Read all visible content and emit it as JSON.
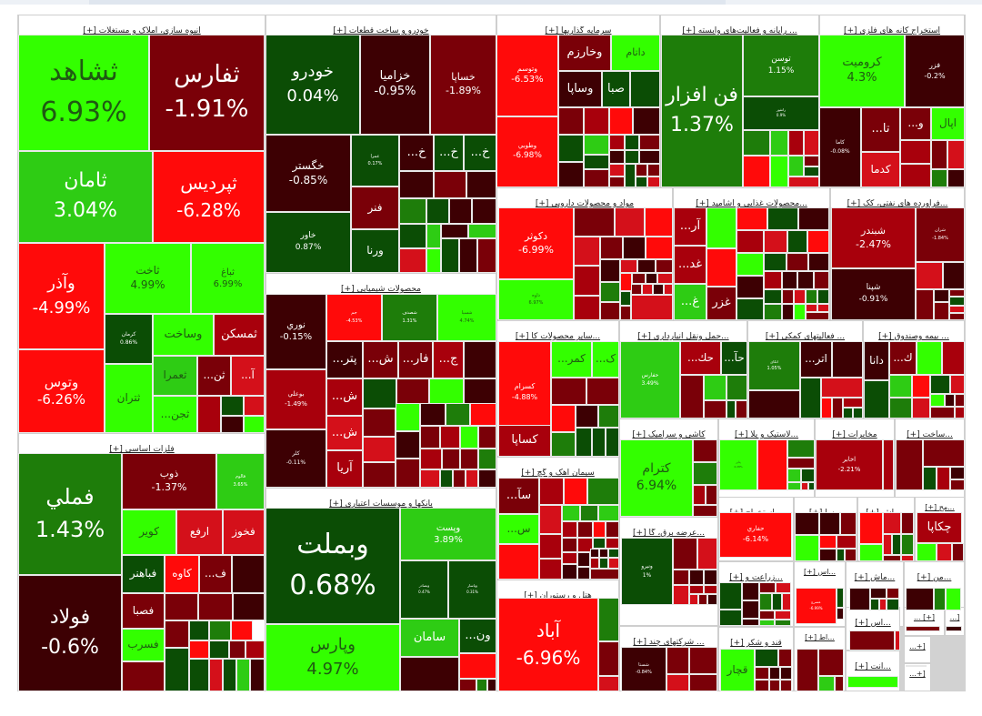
{
  "colors": {
    "strong_green": "#33ff00",
    "mid_green": "#2ecc14",
    "green": "#1e7d0a",
    "dark_green": "#0b4d05",
    "strong_red": "#ff0a0a",
    "red": "#d4101a",
    "mid_red": "#a8000c",
    "dark_red": "#7a0008",
    "darkest_red": "#3d0003"
  },
  "chart_data": {
    "type": "heatmap",
    "title": "",
    "subtype": "treemap",
    "value_label": "daily change %",
    "sectors": [
      {
        "name": "انبوه سازی، املاک و مستغلات",
        "stocks": [
          {
            "symbol": "ثشاهد",
            "change": 6.93
          },
          {
            "symbol": "ثفارس",
            "change": -1.91
          },
          {
            "symbol": "ثامان",
            "change": 3.04
          },
          {
            "symbol": "ثپردیس",
            "change": -6.28
          },
          {
            "symbol": "وآذر",
            "change": -4.99
          },
          {
            "symbol": "ثاخت",
            "change": 4.99
          },
          {
            "symbol": "ثباغ",
            "change": 6.99
          },
          {
            "symbol": "وتوس",
            "change": -6.26
          },
          {
            "symbol": "کرمان",
            "change": 0.86
          },
          {
            "symbol": "وساخت",
            "change": null
          },
          {
            "symbol": "ثمسکن",
            "change": null
          },
          {
            "symbol": "ثعمرا",
            "change": null
          },
          {
            "symbol": "ثتران",
            "change": null
          },
          {
            "symbol": "ثجن...",
            "change": null
          }
        ]
      },
      {
        "name": "فلزات اساسی",
        "stocks": [
          {
            "symbol": "فملي",
            "change": 1.43
          },
          {
            "symbol": "فولاد",
            "change": -0.6
          },
          {
            "symbol": "ذوب",
            "change": -1.37
          },
          {
            "symbol": "فالوم",
            "change": 3.65
          },
          {
            "symbol": "کویر",
            "change": null
          },
          {
            "symbol": "ارفع",
            "change": null
          },
          {
            "symbol": "فخوز",
            "change": null
          },
          {
            "symbol": "فباهنر",
            "change": null
          },
          {
            "symbol": "کاوه",
            "change": null
          },
          {
            "symbol": "فصبا",
            "change": null
          },
          {
            "symbol": "فسرب",
            "change": null
          }
        ]
      },
      {
        "name": "خودرو و ساخت قطعات",
        "stocks": [
          {
            "symbol": "خودرو",
            "change": 0.04
          },
          {
            "symbol": "خزامیا",
            "change": -0.95
          },
          {
            "symbol": "خساپا",
            "change": -1.89
          },
          {
            "symbol": "خگستر",
            "change": -0.85
          },
          {
            "symbol": "خاور",
            "change": 0.87
          },
          {
            "symbol": "عمرا",
            "change": 0.17
          },
          {
            "symbol": "فنر",
            "change": null
          },
          {
            "symbol": "ورنا",
            "change": null
          }
        ]
      },
      {
        "name": "محصولات شیمیایی",
        "stocks": [
          {
            "symbol": "نوري",
            "change": -0.15
          },
          {
            "symbol": "بوعلي",
            "change": -1.49
          },
          {
            "symbol": "کلر",
            "change": -0.11
          },
          {
            "symbol": "جم",
            "change": -4.53
          },
          {
            "symbol": "شصدف",
            "change": 1.31
          },
          {
            "symbol": "شسپا",
            "change": 4.74
          },
          {
            "symbol": "آریا",
            "change": null
          }
        ]
      },
      {
        "name": "بانکها و موسسات اعتباری",
        "stocks": [
          {
            "symbol": "وبملت",
            "change": 0.68
          },
          {
            "symbol": "وپارس",
            "change": 4.97
          },
          {
            "symbol": "وپست",
            "change": 3.89
          },
          {
            "symbol": "وبصادر",
            "change": 0.47
          },
          {
            "symbol": "وپاسار",
            "change": 0.31
          },
          {
            "symbol": "سامان",
            "change": null
          }
        ]
      },
      {
        "name": "سرمایه گذاریها",
        "stocks": [
          {
            "symbol": "وتوسم",
            "change": -6.53
          },
          {
            "symbol": "وطوبي",
            "change": -6.98
          },
          {
            "symbol": "وخارزم",
            "change": null
          },
          {
            "symbol": "داتام",
            "change": null
          },
          {
            "symbol": "وساپا",
            "change": null
          },
          {
            "symbol": "صبا",
            "change": null
          }
        ]
      },
      {
        "name": "رایانه و فعالیت‌های وابسته",
        "stocks": [
          {
            "symbol": "فن افزار",
            "change": 1.37
          },
          {
            "symbol": "توسن",
            "change": 1.15
          },
          {
            "symbol": "رانفور",
            "change": 0.9
          }
        ]
      },
      {
        "name": "استخراج کانه های فلزی",
        "stocks": [
          {
            "symbol": "کرومیت",
            "change": 4.3
          },
          {
            "symbol": "فزر",
            "change": -0.2
          },
          {
            "symbol": "کاما",
            "change": -0.08
          },
          {
            "symbol": "اپال",
            "change": null
          },
          {
            "symbol": "کدما",
            "change": null
          }
        ]
      },
      {
        "name": "مواد و محصولات دارویی",
        "stocks": [
          {
            "symbol": "دکوثر",
            "change": -6.99
          },
          {
            "symbol": "داوه",
            "change": 6.97
          }
        ]
      },
      {
        "name": "محصولات غذایی و آشامیدنی",
        "stocks": [
          {
            "symbol": "غزر",
            "change": null
          }
        ]
      },
      {
        "name": "فراورده های نفتی، کک",
        "stocks": [
          {
            "symbol": "شبندر",
            "change": -2.47
          },
          {
            "symbol": "شپنا",
            "change": -0.91
          },
          {
            "symbol": "شران",
            "change": -1.84
          }
        ]
      },
      {
        "name": "سایر محصولات کانی غیرفلزی",
        "stocks": [
          {
            "symbol": "کسرام",
            "change": -4.88
          },
          {
            "symbol": "کساپا",
            "change": null
          }
        ]
      },
      {
        "name": "حمل ونقل انبارداری",
        "stocks": [
          {
            "symbol": "حفارس",
            "change": 3.49
          }
        ]
      },
      {
        "name": "فعالیتهای کمکی",
        "stocks": [
          {
            "symbol": "اتکای",
            "change": 1.05
          }
        ]
      },
      {
        "name": "بیمه و صندوق",
        "stocks": [
          {
            "symbol": "دانا",
            "change": null
          }
        ]
      },
      {
        "name": "کاشی و سرامیک",
        "stocks": [
          {
            "symbol": "کترام",
            "change": 6.94
          }
        ]
      },
      {
        "name": "لاستیک و پلاستیک",
        "stocks": [
          {
            "symbol": "پتایر",
            "change": 4.28
          }
        ]
      },
      {
        "name": "مخابرات",
        "stocks": [
          {
            "symbol": "اخابر",
            "change": -2.21
          }
        ]
      },
      {
        "name": "سیمان، آهک و گچ",
        "stocks": []
      },
      {
        "name": "عرضه برق، گاز",
        "stocks": [
          {
            "symbol": "ونیرو",
            "change": 1.0
          }
        ]
      },
      {
        "name": "هتل و رستوران",
        "stocks": [
          {
            "symbol": "آباد",
            "change": -6.96
          }
        ]
      },
      {
        "name": "شرکتهای چند رشته ای",
        "stocks": [
          {
            "symbol": "شستا",
            "change": -0.84
          }
        ]
      },
      {
        "name": "استخراج سایر معادن",
        "stocks": [
          {
            "symbol": "حفاري",
            "change": -6.14
          }
        ]
      },
      {
        "name": "محصولات چوبی",
        "stocks": [
          {
            "symbol": "چکاپا",
            "change": null
          }
        ]
      },
      {
        "name": "زراعت",
        "stocks": []
      },
      {
        "name": "قند و شکر",
        "stocks": [
          {
            "symbol": "قچار",
            "change": null
          }
        ]
      },
      {
        "name": "ماشین آلات",
        "stocks": []
      },
      {
        "name": "منسوجات",
        "stocks": []
      }
    ]
  },
  "sectors": {
    "s1": "انبوه سازی، املاک و مستغلات [+]",
    "s2": "خودرو و ساخت قطعات [+]",
    "s3": "سرمایه گذاریها [+]",
    "s4": "... رایانه و فعالیت‌های وابسته [+]",
    "s5": "استخراج کانه های فلزی [+]",
    "s6": "فلزات اساسی [+]",
    "s7": "محصولات شیمیایی [+]",
    "s8": "بانکها و موسسات اعتباری [+]",
    "s9": "مواد و محصولات دارویی [+]",
    "s10": "...محصولات غذایی و آشامید [+]",
    "s11": "...فراورده های نفتی، کک [+]",
    "s12": "...سایر محصولات کا [+]",
    "s13": "...حمل ونقل انبارداری [+]",
    "s14": "... فعالیتهای کمکی [+]",
    "s15": "... بیمه وصندوق [+]",
    "s16": "...ساخت [+]",
    "s17": "کاشی و سرامیک [+]",
    "s18": "...لاستیک و پلا [+]",
    "s19": "مخابرات [+]",
    "s20": "سیمان آهک و گچ [+]",
    "s21": "...عرضه برق، گا [+]",
    "s22": "هتل و رستوران [+]",
    "s23": "... شرکتهای چند [+]",
    "s24": "...استخراج [+]",
    "s25": "...سا [+]",
    "s26": "...ماش [+]",
    "s27": "...مح [+]",
    "s28": "...زراعت و [+]",
    "s29": "...اس [+]",
    "s30": "...ماش [+]",
    "s31": "...من [+]",
    "s32": "قند و شکر [+]",
    "s33": "...اط [+]",
    "s34": "...اس [+]",
    "s35": "...انت [+]",
    "s36": "[+] ...",
    "s37": "[...",
    "s38": "[+...",
    "s39": "[+..."
  },
  "tiles": {
    "t1": {
      "sym": "ثشاهد",
      "pct": "6.93%"
    },
    "t2": {
      "sym": "ثفارس",
      "pct": "-1.91%"
    },
    "t3": {
      "sym": "ثامان",
      "pct": "3.04%"
    },
    "t4": {
      "sym": "ثپردیس",
      "pct": "-6.28%"
    },
    "t5": {
      "sym": "وآذر",
      "pct": "-4.99%"
    },
    "t6": {
      "sym": "ثاخت",
      "pct": "4.99%"
    },
    "t7": {
      "sym": "ثباغ",
      "pct": "6.99%"
    },
    "t8": {
      "sym": "وتوس",
      "pct": "-6.26%"
    },
    "t9": {
      "sym": "کرمان",
      "pct": "0.86%"
    },
    "t10": {
      "sym": "وساخت",
      "pct": ""
    },
    "t11": {
      "sym": "ثمسکن",
      "pct": ""
    },
    "t12": {
      "sym": "ثعمرا",
      "pct": ""
    },
    "t13": {
      "sym": "ثن...",
      "pct": ""
    },
    "t14": {
      "sym": "آ...",
      "pct": ""
    },
    "t15": {
      "sym": "ثتران",
      "pct": ""
    },
    "t16": {
      "sym": "ثجن...",
      "pct": ""
    },
    "f1": {
      "sym": "فملي",
      "pct": "1.43%"
    },
    "f2": {
      "sym": "فولاد",
      "pct": "-0.6%"
    },
    "f3": {
      "sym": "ذوب",
      "pct": "-1.37%"
    },
    "f4": {
      "sym": "فالوم",
      "pct": "3.65%"
    },
    "f5": {
      "sym": "کویر",
      "pct": ""
    },
    "f6": {
      "sym": "ارفع",
      "pct": ""
    },
    "f7": {
      "sym": "فخوز",
      "pct": ""
    },
    "f8": {
      "sym": "فباهنر",
      "pct": ""
    },
    "f9": {
      "sym": "کاوه",
      "pct": ""
    },
    "f10": {
      "sym": "ف...",
      "pct": ""
    },
    "f11": {
      "sym": "فصبا",
      "pct": ""
    },
    "f12": {
      "sym": "فسرب",
      "pct": ""
    },
    "k1": {
      "sym": "خودرو",
      "pct": "0.04%"
    },
    "k2": {
      "sym": "خزامیا",
      "pct": "-0.95%"
    },
    "k3": {
      "sym": "خساپا",
      "pct": "-1.89%"
    },
    "k4": {
      "sym": "خگستر",
      "pct": "-0.85%"
    },
    "k5": {
      "sym": "خاور",
      "pct": "0.87%"
    },
    "k6": {
      "sym": "عمرا",
      "pct": "0.17%"
    },
    "k7": {
      "sym": "خ...",
      "pct": ""
    },
    "k8": {
      "sym": "خ...",
      "pct": ""
    },
    "k9": {
      "sym": "خ...",
      "pct": ""
    },
    "k10": {
      "sym": "فنر",
      "pct": ""
    },
    "k11": {
      "sym": "ورنا",
      "pct": ""
    },
    "c1": {
      "sym": "نوري",
      "pct": "-0.15%"
    },
    "c2": {
      "sym": "بوعلي",
      "pct": "-1.49%"
    },
    "c3": {
      "sym": "کلر",
      "pct": "-0.11%"
    },
    "c4": {
      "sym": "جم",
      "pct": "-4.53%"
    },
    "c5": {
      "sym": "شصدف",
      "pct": "1.31%"
    },
    "c6": {
      "sym": "شسپا",
      "pct": "4.74%"
    },
    "c7": {
      "sym": "پتر...",
      "pct": ""
    },
    "c8": {
      "sym": "ش...",
      "pct": ""
    },
    "c9": {
      "sym": "فار...",
      "pct": ""
    },
    "c10": {
      "sym": "ج...",
      "pct": ""
    },
    "c11": {
      "sym": "ش...",
      "pct": ""
    },
    "c12": {
      "sym": "ش...",
      "pct": ""
    },
    "c13": {
      "sym": "آریا",
      "pct": ""
    },
    "b1": {
      "sym": "وبملت",
      "pct": "0.68%"
    },
    "b2": {
      "sym": "وپارس",
      "pct": "4.97%"
    },
    "b3": {
      "sym": "وپست",
      "pct": "3.89%"
    },
    "b4": {
      "sym": "وبصادر",
      "pct": "0.47%"
    },
    "b5": {
      "sym": "وپاسار",
      "pct": "0.31%"
    },
    "b6": {
      "sym": "سامان",
      "pct": ""
    },
    "b7": {
      "sym": "ون...",
      "pct": ""
    },
    "i1": {
      "sym": "وتوسم",
      "pct": "-6.53%"
    },
    "i2": {
      "sym": "وطوبي",
      "pct": "-6.98%"
    },
    "i3": {
      "sym": "وخارزم",
      "pct": ""
    },
    "i4": {
      "sym": "داتام",
      "pct": ""
    },
    "i5": {
      "sym": "وساپا",
      "pct": ""
    },
    "i6": {
      "sym": "صبا",
      "pct": ""
    },
    "r1": {
      "sym": "فن افزار",
      "pct": "1.37%"
    },
    "r2": {
      "sym": "توسن",
      "pct": "1.15%"
    },
    "r3": {
      "sym": "رانفور",
      "pct": "0.9%"
    },
    "m1": {
      "sym": "کرومیت",
      "pct": "4.3%"
    },
    "m2": {
      "sym": "فزر",
      "pct": "-0.2%"
    },
    "m3": {
      "sym": "کاما",
      "pct": "-0.08%"
    },
    "m4": {
      "sym": "تا...",
      "pct": ""
    },
    "m5": {
      "sym": "و...",
      "pct": ""
    },
    "m6": {
      "sym": "اپال",
      "pct": ""
    },
    "m7": {
      "sym": "کدما",
      "pct": ""
    },
    "d1": {
      "sym": "دکوثر",
      "pct": "-6.99%"
    },
    "d2": {
      "sym": "داوه",
      "pct": "6.97%"
    },
    "g1": {
      "sym": "آر...",
      "pct": ""
    },
    "g2": {
      "sym": "غد...",
      "pct": ""
    },
    "g3": {
      "sym": "غ...",
      "pct": ""
    },
    "g4": {
      "sym": "غزر",
      "pct": ""
    },
    "n1": {
      "sym": "شبندر",
      "pct": "-2.47%"
    },
    "n2": {
      "sym": "شپنا",
      "pct": "-0.91%"
    },
    "n3": {
      "sym": "شران",
      "pct": "-1.84%"
    },
    "x1": {
      "sym": "کسرام",
      "pct": "-4.88%"
    },
    "x2": {
      "sym": "کساپا",
      "pct": ""
    },
    "x3": {
      "sym": "کمر...",
      "pct": ""
    },
    "x4": {
      "sym": "ک...",
      "pct": ""
    },
    "h1": {
      "sym": "حفارس",
      "pct": "3.49%"
    },
    "h2": {
      "sym": "حك...",
      "pct": ""
    },
    "h3": {
      "sym": "حآ...",
      "pct": ""
    },
    "a1": {
      "sym": "اتکای",
      "pct": "1.05%"
    },
    "a2": {
      "sym": "اتر...",
      "pct": ""
    },
    "y1": {
      "sym": "دانا",
      "pct": ""
    },
    "y2": {
      "sym": "ك...",
      "pct": ""
    },
    "e1": {
      "sym": "کترام",
      "pct": "6.94%"
    },
    "l1": {
      "sym": "پتایر",
      "pct": "4.28%"
    },
    "z1": {
      "sym": "اخابر",
      "pct": "-2.21%"
    },
    "s1t": {
      "sym": "سآ...",
      "pct": ""
    },
    "s2t": {
      "sym": "س...",
      "pct": ""
    },
    "v1": {
      "sym": "ونیرو",
      "pct": "1%"
    },
    "o1": {
      "sym": "آباد",
      "pct": "-6.96%"
    },
    "u1": {
      "sym": "شستا",
      "pct": "-0.84%"
    },
    "q1": {
      "sym": "حفاري",
      "pct": "-6.14%"
    },
    "p1": {
      "sym": "چکاپا",
      "pct": ""
    },
    "w1": {
      "sym": "عسرع",
      "pct": "-6.99%"
    },
    "j1": {
      "sym": "قچار",
      "pct": ""
    }
  }
}
